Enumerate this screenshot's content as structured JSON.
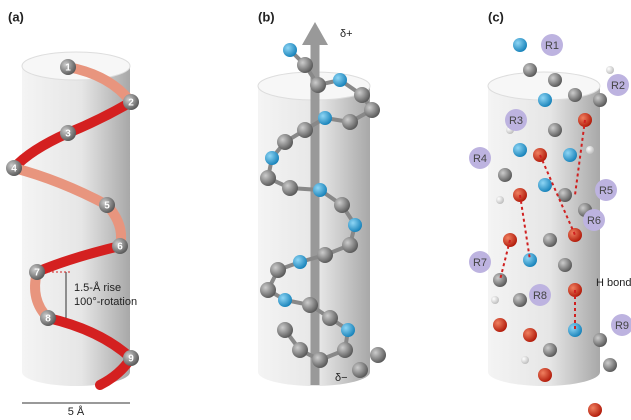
{
  "panels": [
    {
      "label": "(a)",
      "residues": [
        "1",
        "2",
        "3",
        "4",
        "5",
        "6",
        "7",
        "8",
        "9"
      ],
      "rise": "1.5-Å rise",
      "rotation": "100°-rotation",
      "diameter": "5 Å"
    },
    {
      "label": "(b)",
      "dipole_plus": "δ+",
      "dipole_minus": "δ−"
    },
    {
      "label": "(c)",
      "r_groups": [
        "R1",
        "R2",
        "R3",
        "R4",
        "R5",
        "R6",
        "R7",
        "R8",
        "R9"
      ],
      "h_bond": "H bond"
    }
  ]
}
